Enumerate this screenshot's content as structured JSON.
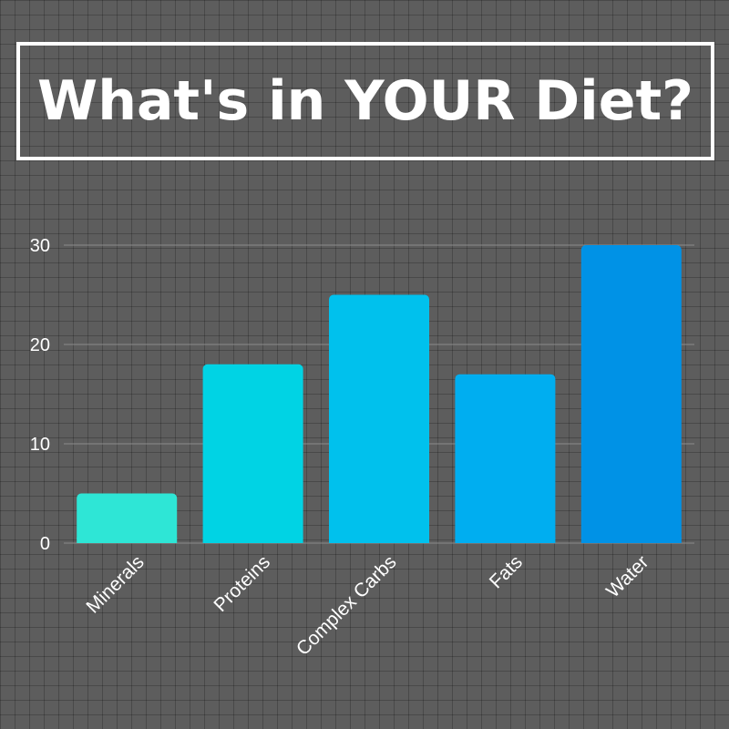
{
  "title": "What's in YOUR Diet?",
  "colors": {
    "background": "#5d5d5d",
    "text": "#ffffff",
    "gridline": "#8a8a8a"
  },
  "chart_data": {
    "type": "bar",
    "title": "What's in YOUR Diet?",
    "xlabel": "",
    "ylabel": "",
    "categories": [
      "Minerals",
      "Proteins",
      "Complex Carbs",
      "Fats",
      "Water"
    ],
    "values": [
      5,
      18,
      25,
      17,
      30
    ],
    "bar_colors": [
      "#2ee6d6",
      "#00d3e4",
      "#00c1ed",
      "#00aef0",
      "#0092e6"
    ],
    "ylim": [
      0,
      30
    ],
    "yticks": [
      0,
      10,
      20,
      30
    ],
    "grid": true,
    "legend": "none"
  }
}
